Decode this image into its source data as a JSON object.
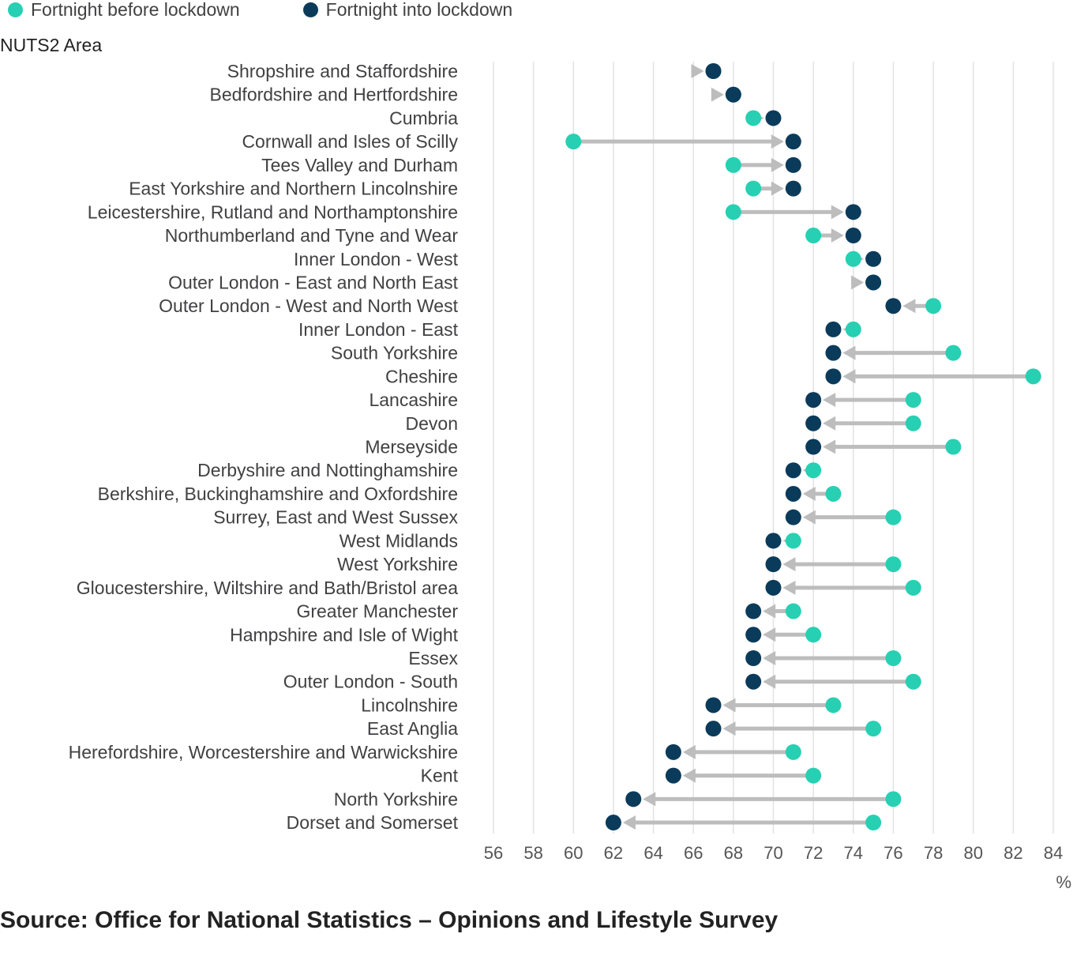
{
  "legend": {
    "before_label": "Fortnight before lockdown",
    "into_label": "Fortnight into lockdown"
  },
  "colors": {
    "before": "#27d0b3",
    "into": "#0b3b5b",
    "arrow": "#bdbdbd",
    "grid": "#e2e2e2"
  },
  "yaxis_title": "NUTS2 Area",
  "unit_label": "%",
  "source": "Source: Office for National Statistics – Opinions and Lifestyle Survey",
  "chart_data": {
    "type": "dumbbell",
    "xlim": [
      56,
      84
    ],
    "xticks": [
      56,
      58,
      60,
      62,
      64,
      66,
      68,
      70,
      72,
      74,
      76,
      78,
      80,
      82,
      84
    ],
    "ylabel": "NUTS2 Area",
    "xlabel": "%",
    "series_names": [
      "Fortnight before lockdown",
      "Fortnight into lockdown"
    ],
    "categories": [
      "Shropshire and Staffordshire",
      "Bedfordshire and Hertfordshire",
      "Cumbria",
      "Cornwall and Isles of Scilly",
      "Tees Valley and Durham",
      "East Yorkshire and Northern Lincolnshire",
      "Leicestershire, Rutland and Northamptonshire",
      "Northumberland and Tyne and Wear",
      "Inner London - West",
      "Outer London - East and North East",
      "Outer London - West and North West",
      "Inner London - East",
      "South Yorkshire",
      "Cheshire",
      "Lancashire",
      "Devon",
      "Merseyside",
      "Derbyshire and Nottinghamshire",
      "Berkshire, Buckinghamshire and Oxfordshire",
      "Surrey, East and West Sussex",
      "West Midlands",
      "West Yorkshire",
      "Gloucestershire, Wiltshire and Bath/Bristol area",
      "Greater Manchester",
      "Hampshire and Isle of Wight",
      "Essex",
      "Outer London - South",
      "Lincolnshire",
      "East Anglia",
      "Herefordshire, Worcestershire and Warwickshire",
      "Kent",
      "North Yorkshire",
      "Dorset and Somerset"
    ],
    "before": [
      67,
      68,
      69,
      60,
      68,
      69,
      68,
      72,
      74,
      75,
      78,
      74,
      79,
      83,
      77,
      77,
      79,
      72,
      73,
      76,
      71,
      76,
      77,
      71,
      72,
      76,
      77,
      73,
      75,
      71,
      72,
      76,
      75
    ],
    "into": [
      67,
      68,
      70,
      71,
      71,
      71,
      74,
      74,
      75,
      75,
      76,
      73,
      73,
      73,
      72,
      72,
      72,
      71,
      71,
      71,
      70,
      70,
      70,
      69,
      69,
      69,
      69,
      67,
      67,
      65,
      65,
      63,
      62
    ]
  }
}
